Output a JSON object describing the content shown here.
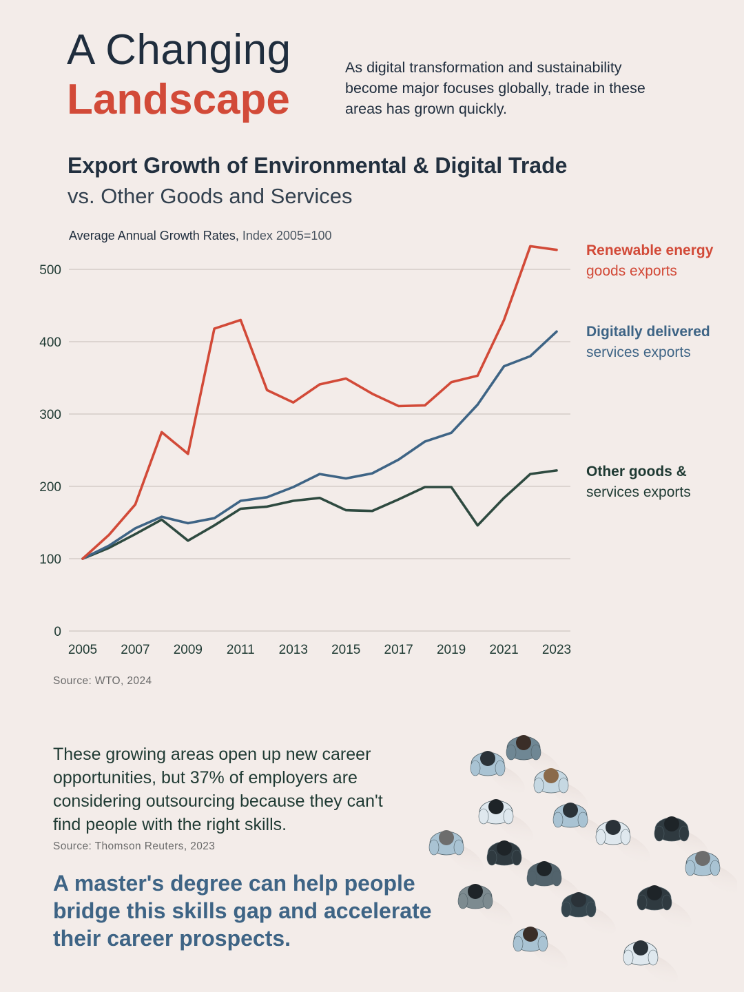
{
  "headline": {
    "line1": "A Changing",
    "line2": "Landscape"
  },
  "intro": "As digital transformation and sustainability become major focuses globally, trade in these areas has grown quickly.",
  "chart_title": {
    "line1": "Export Growth of Environmental & Digital Trade",
    "line2": "vs. Other Goods and Services"
  },
  "chart_subtitle": {
    "bold": "Average Annual Growth Rates,",
    "light": "Index 2005=100"
  },
  "legend": {
    "renewable": {
      "line1": "Renewable energy",
      "line2": "goods exports"
    },
    "digital": {
      "line1": "Digitally delivered",
      "line2": "services exports"
    },
    "other": {
      "line1": "Other goods &",
      "line2": "services exports"
    }
  },
  "colors": {
    "renewable": "#d24a38",
    "digital": "#3e6485",
    "other": "#2e4a40",
    "grid": "#cfc6c2",
    "background": "#f3ece9"
  },
  "chart_data": {
    "type": "line",
    "title": "Export Growth of Environmental & Digital Trade vs. Other Goods and Services",
    "ylabel": "Average Annual Growth Rates, Index 2005=100",
    "x": [
      2005,
      2006,
      2007,
      2008,
      2009,
      2010,
      2011,
      2012,
      2013,
      2014,
      2015,
      2016,
      2017,
      2018,
      2019,
      2020,
      2021,
      2022,
      2023
    ],
    "xticks": [
      "2005",
      "2007",
      "2009",
      "2011",
      "2013",
      "2015",
      "2017",
      "2019",
      "2021",
      "2023"
    ],
    "yticks": [
      0,
      100,
      200,
      300,
      400,
      500
    ],
    "ylim": [
      0,
      520
    ],
    "grid": true,
    "series": [
      {
        "name": "Renewable energy goods exports",
        "key": "renewable",
        "values": [
          100,
          133,
          175,
          275,
          245,
          418,
          430,
          333,
          316,
          341,
          349,
          328,
          311,
          312,
          344,
          353,
          430,
          532,
          527
        ]
      },
      {
        "name": "Digitally delivered services exports",
        "key": "digital",
        "values": [
          100,
          118,
          142,
          158,
          149,
          156,
          180,
          185,
          199,
          217,
          211,
          218,
          237,
          262,
          274,
          313,
          366,
          380,
          414
        ]
      },
      {
        "name": "Other goods & services exports",
        "key": "other",
        "values": [
          100,
          115,
          134,
          154,
          125,
          146,
          169,
          172,
          180,
          184,
          167,
          166,
          182,
          199,
          199,
          146,
          184,
          217,
          222
        ]
      }
    ]
  },
  "source1": "Source: WTO, 2024",
  "body_text": "These growing areas open up new career opportunities, but 37% of employers are considering outsourcing because they can't find people with the right skills.",
  "source2": "Source: Thomson Reuters, 2023",
  "cta": "A master's degree can help people bridge this skills gap and accelerate their career prospects."
}
